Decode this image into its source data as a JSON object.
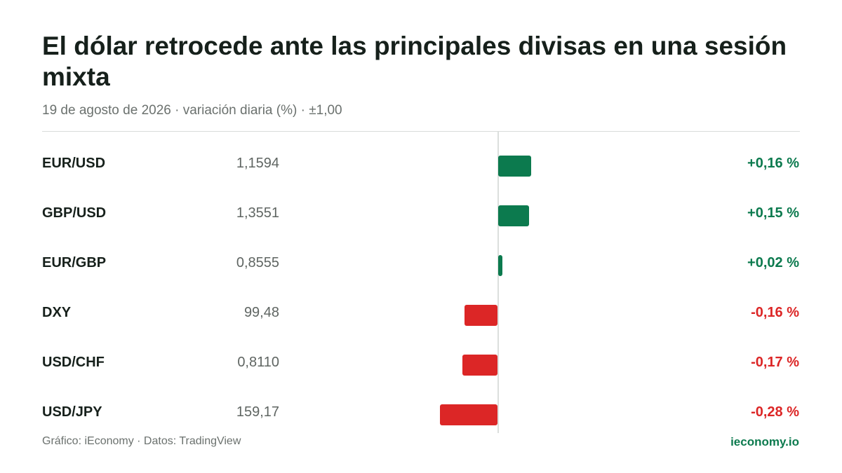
{
  "title": "El dólar retrocede ante las principales divisas en una sesión mixta",
  "subtitle": "19 de agosto de 2026 · variación diaria (%) · ±1,00",
  "footer": {
    "source": "Gráfico: iEconomy · Datos: TradingView",
    "brand": "ieconomy.io"
  },
  "colors": {
    "positive": "#0c7a4e",
    "negative": "#dc2626",
    "axis": "#dcdfdd"
  },
  "chart_data": {
    "type": "bar",
    "orientation": "horizontal",
    "scale_range": [
      -1,
      1
    ],
    "rows": [
      {
        "pair": "EUR/USD",
        "rate": "1,1594",
        "change": 0.16,
        "change_label": "+0,16 %"
      },
      {
        "pair": "GBP/USD",
        "rate": "1,3551",
        "change": 0.15,
        "change_label": "+0,15 %"
      },
      {
        "pair": "EUR/GBP",
        "rate": "0,8555",
        "change": 0.02,
        "change_label": "+0,02 %"
      },
      {
        "pair": "DXY",
        "rate": "99,48",
        "change": -0.16,
        "change_label": "-0,16 %"
      },
      {
        "pair": "USD/CHF",
        "rate": "0,8110",
        "change": -0.17,
        "change_label": "-0,17 %"
      },
      {
        "pair": "USD/JPY",
        "rate": "159,17",
        "change": -0.28,
        "change_label": "-0,28 %"
      }
    ]
  }
}
